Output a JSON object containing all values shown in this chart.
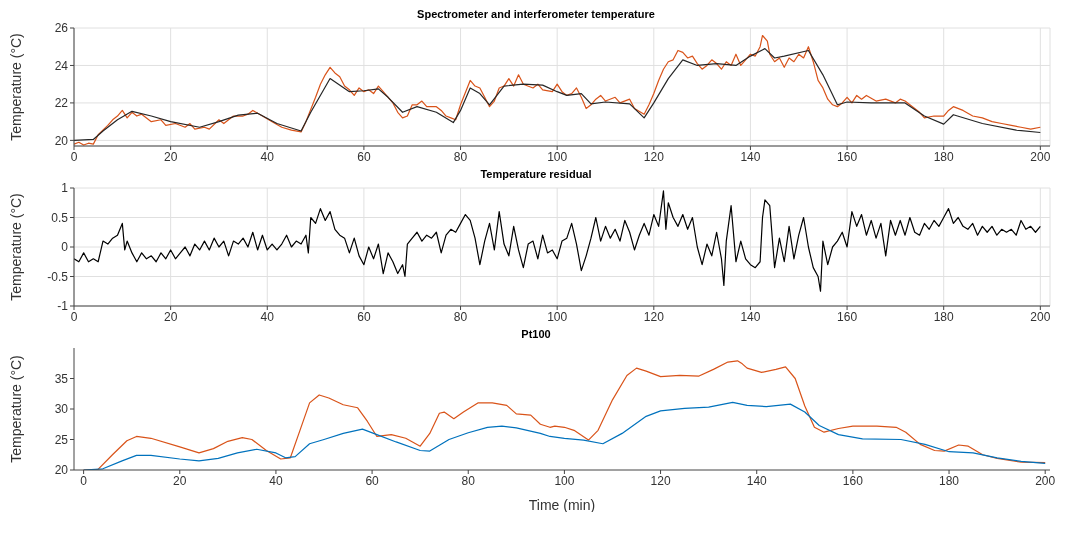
{
  "chart_data": [
    {
      "type": "line",
      "title": "Spectrometer and interferometer temperature",
      "ylabel": "Temperature (°C)",
      "xlim": [
        0,
        202
      ],
      "xticks": [
        0,
        20,
        40,
        60,
        80,
        100,
        120,
        140,
        160,
        180,
        200
      ],
      "ylim": [
        19.7,
        26
      ],
      "yticks": [
        20,
        22,
        24,
        26
      ],
      "grid": true,
      "series": [
        {
          "color": "#d95319",
          "x": [
            0,
            1,
            2,
            3,
            4,
            5,
            7,
            8,
            9,
            10,
            11,
            12,
            13,
            14,
            16,
            18,
            19,
            21,
            23,
            24,
            25,
            27,
            28,
            30,
            31,
            33,
            35,
            36,
            37,
            39,
            41,
            43,
            45,
            47,
            48,
            50,
            51,
            52,
            53,
            54,
            55,
            56,
            57,
            58,
            59,
            60,
            61,
            62,
            63,
            64,
            66,
            67,
            68,
            69,
            70,
            71,
            72,
            73,
            75,
            76,
            77,
            78,
            79,
            80,
            82,
            83,
            84,
            85,
            86,
            87,
            88,
            89,
            90,
            91,
            92,
            93,
            95,
            96,
            97,
            99,
            100,
            101,
            102,
            103,
            104,
            105,
            106,
            107,
            108,
            109,
            110,
            112,
            113,
            115,
            116,
            118,
            119,
            120,
            121,
            122,
            123,
            124,
            125,
            126,
            127,
            128,
            129,
            130,
            131,
            132,
            133,
            134,
            135,
            136,
            137,
            138,
            139,
            140,
            141,
            142,
            142.5,
            143.5,
            144,
            145,
            146,
            147,
            148,
            149,
            150,
            151,
            152,
            153,
            154,
            155,
            156,
            157,
            158,
            159,
            160,
            161,
            162,
            163,
            164,
            166,
            168,
            170,
            171,
            172,
            173,
            175,
            176,
            178,
            180,
            181,
            182,
            184,
            186,
            188,
            190,
            192,
            194,
            196,
            198,
            200
          ],
          "values": [
            19.8,
            19.9,
            19.75,
            19.85,
            19.8,
            20.3,
            20.8,
            21.1,
            21.3,
            21.6,
            21.2,
            21.5,
            21.3,
            21.4,
            21.0,
            21.1,
            20.8,
            20.9,
            20.7,
            20.9,
            20.6,
            20.7,
            20.6,
            21.1,
            20.9,
            21.3,
            21.3,
            21.4,
            21.6,
            21.3,
            21.0,
            20.7,
            20.55,
            20.45,
            21.0,
            22.3,
            23.0,
            23.5,
            23.9,
            23.6,
            23.4,
            22.9,
            22.7,
            22.4,
            22.8,
            22.6,
            22.7,
            22.5,
            22.9,
            22.6,
            22.0,
            21.5,
            21.2,
            21.3,
            21.9,
            21.9,
            22.1,
            21.8,
            21.8,
            21.6,
            21.3,
            21.2,
            21.1,
            21.9,
            23.2,
            22.9,
            22.8,
            22.3,
            21.8,
            22.1,
            22.8,
            22.9,
            23.3,
            22.9,
            23.5,
            23.0,
            22.8,
            23.0,
            22.7,
            22.6,
            23.0,
            22.6,
            22.4,
            22.5,
            22.8,
            22.3,
            21.7,
            21.9,
            22.2,
            22.4,
            22.1,
            22.3,
            22.0,
            22.2,
            21.7,
            21.4,
            21.9,
            22.5,
            23.2,
            23.8,
            24.2,
            24.3,
            24.8,
            24.7,
            24.4,
            24.5,
            24.1,
            23.8,
            24.0,
            24.3,
            24.1,
            23.8,
            24.2,
            24.0,
            24.6,
            24.0,
            24.3,
            24.6,
            24.5,
            25.0,
            25.6,
            25.3,
            24.6,
            24.2,
            24.4,
            23.9,
            24.4,
            24.2,
            24.6,
            24.4,
            25.0,
            24.2,
            23.2,
            22.8,
            22.2,
            21.9,
            21.8,
            22.0,
            22.3,
            22.0,
            22.4,
            22.2,
            22.4,
            22.1,
            22.2,
            22.0,
            22.2,
            22.1,
            21.9,
            21.5,
            21.2,
            21.3,
            21.3,
            21.6,
            21.8,
            21.6,
            21.3,
            21.2,
            21.0,
            20.9,
            20.8,
            20.7,
            20.6,
            20.7
          ]
        },
        {
          "color": "#262626",
          "x": [
            0,
            4,
            6,
            9,
            12,
            16,
            20,
            26,
            30,
            34,
            38,
            42,
            47,
            49,
            53,
            57,
            60,
            63,
            65,
            68,
            71,
            75,
            78.5,
            80,
            82,
            84,
            86,
            89,
            93,
            97,
            100,
            102,
            105,
            107,
            110,
            115,
            118,
            120,
            123,
            126,
            129,
            133,
            137,
            140,
            143,
            145,
            147,
            152,
            155,
            158,
            160,
            165,
            172,
            176,
            180,
            182,
            188,
            195,
            200
          ],
          "values": [
            20.0,
            20.05,
            20.5,
            21.1,
            21.55,
            21.3,
            21.0,
            20.7,
            21.0,
            21.35,
            21.45,
            20.9,
            20.5,
            21.5,
            23.3,
            22.6,
            22.65,
            22.75,
            22.3,
            21.5,
            21.8,
            21.5,
            20.95,
            21.6,
            22.8,
            22.5,
            21.9,
            22.9,
            23.0,
            22.95,
            22.6,
            22.4,
            22.5,
            21.95,
            22.05,
            21.95,
            21.2,
            22.0,
            23.3,
            24.3,
            24.0,
            24.1,
            24.0,
            24.5,
            24.9,
            24.4,
            24.5,
            24.8,
            23.5,
            21.9,
            22.05,
            22.0,
            22.0,
            21.3,
            20.87,
            21.37,
            20.9,
            20.55,
            20.42
          ]
        }
      ]
    },
    {
      "type": "line",
      "title": "Temperature residual",
      "ylabel": "Temperature (°C)",
      "xlim": [
        0,
        202
      ],
      "xticks": [
        0,
        20,
        40,
        60,
        80,
        100,
        120,
        140,
        160,
        180,
        200
      ],
      "ylim": [
        -1,
        1
      ],
      "yticks": [
        -1,
        -0.5,
        0,
        0.5,
        1
      ],
      "grid": true,
      "series": [
        {
          "color": "#000000",
          "x": [
            0,
            1,
            2,
            3,
            4,
            5,
            6,
            7,
            8,
            9,
            10,
            10.5,
            11,
            12,
            13,
            14,
            15,
            16,
            17,
            18,
            19,
            20,
            21,
            22,
            23,
            24,
            25,
            26,
            27,
            28,
            29,
            30,
            31,
            32,
            33,
            34,
            35,
            36,
            37,
            38,
            39,
            40,
            41,
            42,
            43,
            44,
            45,
            46,
            47,
            48,
            48.5,
            49,
            50,
            51,
            52,
            53,
            54,
            55,
            56,
            57,
            58,
            59,
            60,
            61,
            62,
            63,
            64,
            65,
            66,
            67,
            68,
            68.5,
            69,
            70,
            71,
            72,
            73,
            74,
            75,
            76,
            77,
            78,
            79,
            80,
            81,
            82,
            83,
            84,
            85,
            86,
            87,
            88,
            89,
            90,
            91,
            92,
            93,
            94,
            95,
            96,
            97,
            98,
            99,
            100,
            101,
            102,
            103,
            104,
            105,
            106,
            107,
            108,
            109,
            110,
            111,
            112,
            113,
            114,
            115,
            116,
            117,
            118,
            119,
            120,
            121,
            122,
            122.5,
            123,
            124,
            125,
            126,
            127,
            128,
            129,
            130,
            131,
            132,
            133,
            134,
            134.5,
            135,
            136,
            137,
            138,
            139,
            140,
            141,
            142,
            142.5,
            143,
            144,
            145,
            146,
            147,
            148,
            149,
            150,
            151,
            152,
            153,
            154,
            154.5,
            155,
            156,
            157,
            158,
            159,
            160,
            161,
            162,
            163,
            164,
            165,
            166,
            167,
            168,
            169,
            170,
            171,
            172,
            173,
            174,
            175,
            176,
            177,
            178,
            179,
            180,
            181,
            182,
            183,
            184,
            185,
            186,
            187,
            188,
            189,
            190,
            191,
            192,
            193,
            194,
            195,
            196,
            197,
            198,
            199,
            200
          ],
          "values": [
            -0.2,
            -0.25,
            -0.1,
            -0.25,
            -0.2,
            -0.25,
            0.1,
            0.05,
            0.15,
            0.2,
            0.4,
            -0.05,
            0.1,
            -0.1,
            -0.25,
            -0.1,
            -0.2,
            -0.15,
            -0.25,
            -0.1,
            -0.2,
            -0.05,
            -0.2,
            -0.1,
            0.0,
            -0.15,
            0.05,
            -0.05,
            0.1,
            -0.05,
            0.15,
            0.0,
            0.1,
            -0.15,
            0.1,
            0.05,
            0.15,
            0.0,
            0.25,
            -0.05,
            0.2,
            -0.05,
            0.05,
            -0.05,
            0.05,
            0.2,
            0.0,
            0.1,
            0.05,
            0.2,
            -0.1,
            0.5,
            0.4,
            0.65,
            0.45,
            0.6,
            0.3,
            0.2,
            0.15,
            -0.1,
            0.15,
            -0.15,
            -0.3,
            0.0,
            -0.2,
            0.05,
            -0.45,
            -0.1,
            -0.25,
            -0.45,
            -0.3,
            -0.5,
            0.05,
            0.15,
            0.25,
            0.1,
            0.2,
            0.15,
            0.25,
            -0.1,
            0.2,
            0.3,
            0.25,
            0.4,
            0.55,
            0.45,
            0.15,
            -0.3,
            0.1,
            0.4,
            -0.05,
            0.6,
            0.05,
            -0.15,
            0.35,
            -0.05,
            -0.35,
            0.05,
            0.1,
            -0.2,
            0.2,
            -0.1,
            -0.05,
            -0.2,
            0.1,
            0.15,
            0.4,
            0.05,
            -0.4,
            -0.15,
            0.15,
            0.5,
            0.1,
            0.35,
            0.15,
            0.3,
            0.1,
            0.45,
            0.25,
            -0.05,
            0.2,
            0.4,
            0.2,
            0.55,
            0.35,
            0.95,
            0.3,
            0.75,
            0.5,
            0.35,
            0.55,
            0.3,
            0.5,
            0.0,
            -0.3,
            0.05,
            -0.15,
            0.25,
            -0.2,
            -0.65,
            0.1,
            0.7,
            -0.25,
            0.1,
            -0.2,
            -0.3,
            -0.35,
            -0.25,
            0.5,
            0.8,
            0.7,
            -0.35,
            0.15,
            -0.25,
            0.35,
            -0.2,
            0.2,
            0.5,
            0.0,
            -0.35,
            -0.5,
            -0.75,
            0.1,
            -0.3,
            0.0,
            0.1,
            0.25,
            0.0,
            0.6,
            0.35,
            0.55,
            0.2,
            0.45,
            0.15,
            0.4,
            -0.15,
            0.45,
            0.2,
            0.45,
            0.2,
            0.5,
            0.25,
            0.2,
            0.4,
            0.3,
            0.45,
            0.35,
            0.5,
            0.65,
            0.4,
            0.5,
            0.35,
            0.3,
            0.4,
            0.2,
            0.35,
            0.25,
            0.35,
            0.2,
            0.3,
            0.25,
            0.3,
            0.2,
            0.45,
            0.3,
            0.35,
            0.25,
            0.35
          ]
        }
      ]
    },
    {
      "type": "line",
      "title": "Pt100",
      "xlabel": "Time (min)",
      "ylabel": "Temperature (°C)",
      "xlim": [
        -2,
        201
      ],
      "xticks": [
        0,
        20,
        40,
        60,
        80,
        100,
        120,
        140,
        160,
        180,
        200
      ],
      "ylim": [
        20,
        40
      ],
      "yticks": [
        20,
        25,
        30,
        35
      ],
      "series": [
        {
          "color": "#d95319",
          "x": [
            0,
            3,
            6,
            9,
            11,
            14,
            20,
            24,
            27,
            30,
            33,
            35,
            38,
            41,
            43,
            45,
            47,
            49,
            51,
            54,
            57,
            59,
            61,
            64,
            67,
            70,
            72,
            74,
            75,
            77,
            79,
            82,
            85,
            88,
            90,
            93,
            95,
            97,
            98,
            100,
            102,
            105,
            107,
            110,
            113,
            115,
            117,
            120,
            124,
            128,
            131,
            134,
            136,
            137,
            138,
            141,
            144,
            146,
            148,
            150,
            152,
            154,
            157,
            160,
            165,
            169,
            171,
            174,
            177,
            179,
            182,
            184,
            187,
            190,
            195,
            200
          ],
          "values": [
            20,
            20.1,
            22.5,
            24.8,
            25.5,
            25.2,
            23.8,
            22.8,
            23.5,
            24.7,
            25.3,
            25.0,
            23.2,
            21.8,
            22.0,
            26.5,
            31.0,
            32.3,
            31.8,
            30.7,
            30.2,
            28,
            25.5,
            25.8,
            25.2,
            23.9,
            26,
            29.3,
            29.5,
            28.4,
            29.5,
            31.0,
            31.0,
            30.6,
            29.2,
            29.0,
            27.5,
            27.0,
            27.2,
            27.0,
            26.5,
            24.9,
            26.5,
            31.5,
            35.5,
            36.7,
            36.2,
            35.3,
            35.5,
            35.4,
            36.5,
            37.7,
            37.9,
            37.4,
            36.7,
            36.0,
            36.5,
            36.9,
            35,
            30.5,
            27.0,
            26.2,
            26.8,
            27.2,
            27.2,
            27.0,
            26.2,
            24.2,
            23.2,
            23.1,
            24.1,
            23.9,
            22.5,
            21.9,
            21.3,
            21.2
          ]
        },
        {
          "color": "#0072bd",
          "x": [
            0,
            4,
            8,
            11,
            14,
            20,
            24,
            28,
            32,
            36,
            40,
            42,
            44,
            47,
            50,
            54,
            58,
            61,
            65,
            70,
            72,
            76,
            80,
            84,
            87,
            90,
            95,
            97,
            100,
            104,
            108,
            112,
            117,
            120,
            125,
            130,
            135,
            138,
            142,
            147,
            150,
            153,
            157,
            162,
            170,
            175,
            180,
            185,
            190,
            195,
            200
          ],
          "values": [
            20,
            20.2,
            21.5,
            22.4,
            22.4,
            21.8,
            21.5,
            21.9,
            22.8,
            23.4,
            22.8,
            22.0,
            22.2,
            24.3,
            25.0,
            26.0,
            26.7,
            25.8,
            24.6,
            23.2,
            23.1,
            25.0,
            26.1,
            27.0,
            27.2,
            26.9,
            26.0,
            25.5,
            25.2,
            24.9,
            24.3,
            26.0,
            28.8,
            29.7,
            30.1,
            30.3,
            31.1,
            30.6,
            30.4,
            30.8,
            29.5,
            27.3,
            25.8,
            25.1,
            25.0,
            24.2,
            23.0,
            22.8,
            22.0,
            21.4,
            21.1
          ]
        }
      ]
    }
  ]
}
